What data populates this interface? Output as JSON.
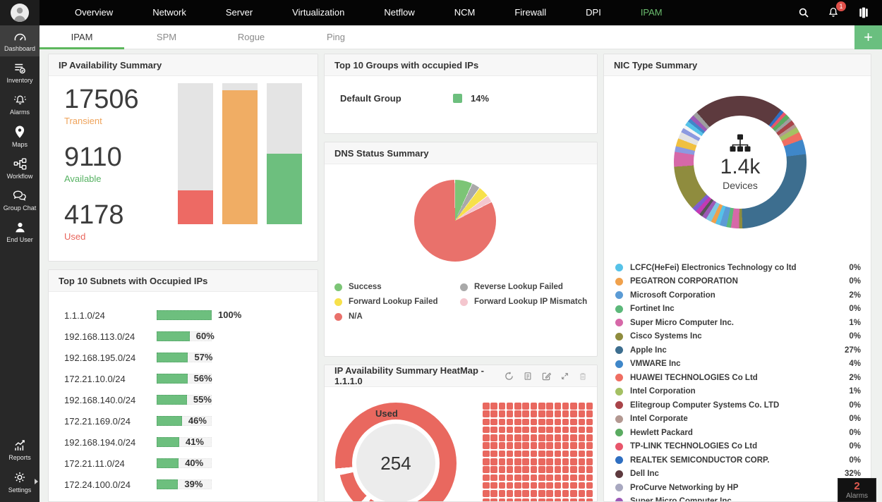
{
  "topbar": {
    "nav": [
      {
        "label": "Overview"
      },
      {
        "label": "Network"
      },
      {
        "label": "Server"
      },
      {
        "label": "Virtualization"
      },
      {
        "label": "Netflow"
      },
      {
        "label": "NCM"
      },
      {
        "label": "Firewall"
      },
      {
        "label": "DPI"
      },
      {
        "label": "IPAM",
        "active": true
      }
    ],
    "notification_count": "1",
    "icons": [
      "search-icon",
      "bell-icon",
      "apps-icon"
    ]
  },
  "subtabs": [
    {
      "label": "IPAM",
      "active": true
    },
    {
      "label": "SPM"
    },
    {
      "label": "Rogue"
    },
    {
      "label": "Ping"
    }
  ],
  "add_button_label": "+",
  "sidebar": {
    "items": [
      {
        "label": "Dashboard",
        "icon": "gauge-icon",
        "active": true
      },
      {
        "label": "Inventory",
        "icon": "list-check-icon"
      },
      {
        "label": "Alarms",
        "icon": "bell-alert-icon"
      },
      {
        "label": "Maps",
        "icon": "map-pin-icon"
      },
      {
        "label": "Workflow",
        "icon": "workflow-icon"
      },
      {
        "label": "Group Chat",
        "icon": "chat-bubbles-icon"
      },
      {
        "label": "End User",
        "icon": "person-icon"
      }
    ],
    "bottom_items": [
      {
        "label": "Reports",
        "icon": "report-chart-icon"
      },
      {
        "label": "Settings",
        "icon": "gear-icon"
      }
    ]
  },
  "panels": {
    "ip_availability": {
      "title": "IP Availability Summary",
      "stats": [
        {
          "value": "17506",
          "label": "Transient",
          "color": "#efa35a"
        },
        {
          "value": "9110",
          "label": "Available",
          "color": "#56b262"
        },
        {
          "value": "4178",
          "label": "Used",
          "color": "#e8655c"
        }
      ],
      "bars": [
        {
          "name": "Used",
          "pct": 24,
          "color": "#ed6a64"
        },
        {
          "name": "Transient",
          "pct": 95,
          "color": "#f0ad64"
        },
        {
          "name": "Available",
          "pct": 50,
          "color": "#6dbf7e"
        }
      ]
    },
    "top_groups": {
      "title": "Top 10 Groups with occupied IPs",
      "rows": [
        {
          "label": "Default Group",
          "pct": "14%",
          "color": "#6dbf7e"
        }
      ]
    },
    "dns_status": {
      "title": "DNS Status Summary",
      "slices": [
        {
          "label": "Success",
          "pct": 7,
          "color": "#7cc576"
        },
        {
          "label": "Reverse Lookup Failed",
          "pct": 3.3,
          "color": "#a9a9a9"
        },
        {
          "label": "Forward Lookup Failed",
          "pct": 4.4,
          "color": "#f7e14b"
        },
        {
          "label": "Forward Lookup IP Mismatch",
          "pct": 2.8,
          "color": "#f4c6ce"
        },
        {
          "label": "N/A",
          "pct": 82.5,
          "color": "#e9716b"
        }
      ],
      "legend_columns": [
        [
          {
            "label": "Success",
            "color": "#7cc576"
          },
          {
            "label": "Forward Lookup Failed",
            "color": "#f7e14b"
          },
          {
            "label": "N/A",
            "color": "#e9716b"
          }
        ],
        [
          {
            "label": "Reverse Lookup Failed",
            "color": "#a9a9a9"
          },
          {
            "label": "Forward Lookup IP Mismatch",
            "color": "#f4c6ce"
          }
        ]
      ]
    },
    "heatmap": {
      "title": "IP Availability Summary HeatMap - 1.1.1.0",
      "action_icons": [
        "refresh-icon",
        "export-icon",
        "edit-icon",
        "resize-icon",
        "delete-icon"
      ],
      "gauge_label": "Used",
      "gauge_value": "254",
      "gauge_color": "#e9685f",
      "grid_cols": 14,
      "grid_rows": 14,
      "cell_color": "#e9685f"
    },
    "top_subnets": {
      "title": "Top 10 Subnets with Occupied IPs",
      "rows": [
        {
          "label": "1.1.1.0/24",
          "value": 100,
          "pct": "100%"
        },
        {
          "label": "192.168.113.0/24",
          "value": 60,
          "pct": "60%"
        },
        {
          "label": "192.168.195.0/24",
          "value": 57,
          "pct": "57%"
        },
        {
          "label": "172.21.10.0/24",
          "value": 56,
          "pct": "56%"
        },
        {
          "label": "192.168.140.0/24",
          "value": 55,
          "pct": "55%"
        },
        {
          "label": "172.21.169.0/24",
          "value": 46,
          "pct": "46%"
        },
        {
          "label": "192.168.194.0/24",
          "value": 41,
          "pct": "41%"
        },
        {
          "label": "172.21.11.0/24",
          "value": 40,
          "pct": "40%"
        },
        {
          "label": "172.24.100.0/24",
          "value": 39,
          "pct": "39%"
        }
      ]
    },
    "nic_summary": {
      "title": "NIC Type Summary",
      "center_icon": "network-hierarchy-icon",
      "center_value": "1.4k",
      "center_label": "Devices",
      "legend": [
        {
          "name": "LCFC(HeFei) Electronics Technology co ltd",
          "pct": "0%",
          "color": "#56c2e8"
        },
        {
          "name": "PEGATRON CORPORATION",
          "pct": "0%",
          "color": "#f0a14c"
        },
        {
          "name": "Microsoft Corporation",
          "pct": "2%",
          "color": "#5b9bd5"
        },
        {
          "name": "Fortinet Inc",
          "pct": "0%",
          "color": "#5cb87a"
        },
        {
          "name": "Super Micro Computer Inc.",
          "pct": "1%",
          "color": "#d668a8"
        },
        {
          "name": "Cisco Systems Inc",
          "pct": "0%",
          "color": "#8f8c3e"
        },
        {
          "name": "Apple Inc",
          "pct": "27%",
          "color": "#3d6e8f"
        },
        {
          "name": "VMWARE Inc",
          "pct": "4%",
          "color": "#3f87c9"
        },
        {
          "name": "HUAWEI TECHNOLOGIES Co Ltd",
          "pct": "2%",
          "color": "#ef6e62"
        },
        {
          "name": "Intel Corporation",
          "pct": "1%",
          "color": "#a4c063"
        },
        {
          "name": "Elitegroup Computer Systems Co. LTD",
          "pct": "0%",
          "color": "#a94449"
        },
        {
          "name": "Intel Corporate",
          "pct": "0%",
          "color": "#b39891"
        },
        {
          "name": "Hewlett Packard",
          "pct": "0%",
          "color": "#5aab61"
        },
        {
          "name": "TP-LINK TECHNOLOGIES Co Ltd",
          "pct": "0%",
          "color": "#e8566b"
        },
        {
          "name": "REALTEK SEMICONDUCTOR CORP.",
          "pct": "0%",
          "color": "#2f6fc1"
        },
        {
          "name": "Dell Inc",
          "pct": "32%",
          "color": "#5d3a3e"
        },
        {
          "name": "ProCurve Networking by HP",
          "pct": "",
          "color": "#a8a8c0"
        },
        {
          "name": "Super Micro Computer Inc",
          "pct": "",
          "color": "#9b59b6"
        }
      ],
      "donut_segments": [
        [
          "#5d3a3e",
          38
        ],
        [
          "#2f6fc1",
          3
        ],
        [
          "#e8566b",
          3
        ],
        [
          "#5aab61",
          4
        ],
        [
          "#9e9e9e",
          3
        ],
        [
          "#a94449",
          4
        ],
        [
          "#b39891",
          3
        ],
        [
          "#a4c063",
          5
        ],
        [
          "#ef6e62",
          7
        ],
        [
          "#3f87c9",
          13
        ],
        [
          "#3d6e8f",
          95
        ],
        [
          "#8f8c3e",
          3
        ],
        [
          "#d668a8",
          7
        ],
        [
          "#5cb87a",
          4
        ],
        [
          "#5b9bd5",
          6
        ],
        [
          "#56c2e8",
          4
        ],
        [
          "#f0a14c",
          4
        ],
        [
          "#7ec8e3",
          5
        ],
        [
          "#9b59b6",
          4
        ],
        [
          "#555555",
          3
        ],
        [
          "#c339b4",
          4
        ],
        [
          "#7d5fd0",
          4
        ],
        [
          "#8f8c3e",
          40
        ],
        [
          "#d668a8",
          13
        ],
        [
          "#8c9ae0",
          5
        ],
        [
          "#f0c040",
          7
        ],
        [
          "#e3e3e3",
          6
        ],
        [
          "#8c9ae0",
          4
        ],
        [
          "#f5f5f5",
          3
        ],
        [
          "#56c2e8",
          4
        ],
        [
          "#3f87c9",
          3
        ],
        [
          "#9b59b6",
          4
        ],
        [
          "#9e9e9e",
          4
        ],
        [
          "#5d3a3e",
          41
        ]
      ]
    }
  },
  "alarms_badge": {
    "count": "2",
    "label": "Alarms"
  }
}
